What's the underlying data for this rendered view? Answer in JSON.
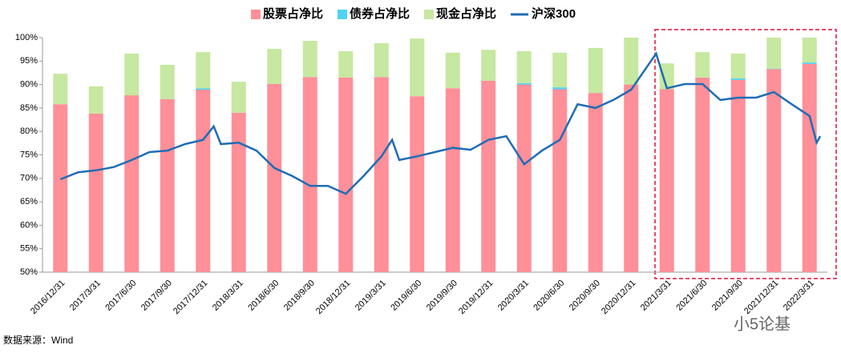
{
  "chart_data": {
    "type": "bar",
    "categories": [
      "2016/12/31",
      "2017/3/31",
      "2017/6/30",
      "2017/9/30",
      "2017/12/31",
      "2018/3/31",
      "2018/6/30",
      "2018/9/30",
      "2018/12/31",
      "2019/3/31",
      "2019/6/30",
      "2019/9/30",
      "2019/12/31",
      "2020/3/31",
      "2020/6/30",
      "2020/9/30",
      "2020/12/31",
      "2021/3/31",
      "2021/6/30",
      "2021/9/30",
      "2021/12/31",
      "2022/3/31"
    ],
    "series": [
      {
        "name": "股票占净比",
        "color": "#ff8f98",
        "values": [
          85.8,
          83.8,
          87.7,
          86.9,
          88.9,
          84.0,
          90.1,
          91.6,
          91.5,
          91.6,
          87.5,
          89.2,
          90.8,
          90.0,
          89.0,
          88.2,
          90.0,
          89.0,
          91.5,
          91.0,
          93.3,
          94.4
        ]
      },
      {
        "name": "债券占净比",
        "color": "#4dd3f0",
        "values": [
          0,
          0,
          0,
          0,
          0.3,
          0,
          0,
          0,
          0,
          0,
          0,
          0,
          0,
          0.3,
          0.4,
          0,
          0,
          0,
          0,
          0.3,
          0.1,
          0.3
        ]
      },
      {
        "name": "现金占净比",
        "color": "#c6e8a0",
        "values": [
          6.5,
          5.8,
          8.9,
          7.3,
          7.7,
          6.6,
          7.5,
          7.7,
          5.6,
          7.2,
          12.3,
          7.6,
          6.6,
          6.8,
          7.4,
          9.6,
          10.0,
          5.5,
          5.4,
          5.3,
          6.6,
          5.3
        ]
      },
      {
        "name": "沪深300",
        "color": "#1f6db5",
        "type": "line",
        "x": [
          0,
          0.5,
          1,
          1.5,
          2,
          2.5,
          3,
          3.5,
          4,
          4.3,
          4.5,
          5,
          5.5,
          6,
          6.5,
          7,
          7.5,
          8,
          8.5,
          9,
          9.3,
          9.5,
          10,
          10.5,
          11,
          11.5,
          12,
          12.5,
          13,
          13.5,
          14,
          14.5,
          15,
          15.5,
          16,
          16.5,
          16.7,
          17,
          17.5,
          18,
          18.5,
          19,
          19.5,
          20,
          20.5,
          21,
          21.2,
          21.3
        ],
        "values": [
          69.8,
          71.3,
          71.7,
          72.4,
          73.9,
          75.6,
          75.9,
          77.3,
          78.2,
          81.1,
          77.3,
          77.6,
          75.9,
          72.2,
          70.5,
          68.4,
          68.4,
          66.7,
          70.5,
          74.7,
          78.2,
          73.9,
          74.7,
          75.6,
          76.5,
          76.1,
          78.2,
          79.0,
          73.0,
          75.9,
          78.2,
          85.8,
          85.0,
          86.7,
          88.9,
          94.4,
          96.6,
          89.2,
          90.1,
          90.1,
          86.7,
          87.2,
          87.2,
          88.4,
          85.8,
          83.3,
          77.6,
          79.0
        ]
      }
    ],
    "ylim": [
      50,
      100
    ],
    "yticks": [
      {
        "value": 50,
        "label": "50%"
      },
      {
        "value": 55,
        "label": "55%"
      },
      {
        "value": 60,
        "label": "60%"
      },
      {
        "value": 65,
        "label": "65%"
      },
      {
        "value": 70,
        "label": "70%"
      },
      {
        "value": 75,
        "label": "75%"
      },
      {
        "value": 80,
        "label": "80%"
      },
      {
        "value": 85,
        "label": "85%"
      },
      {
        "value": 90,
        "label": "90%"
      },
      {
        "value": 95,
        "label": "95%"
      },
      {
        "value": 100,
        "label": "100%"
      }
    ],
    "grid": false,
    "legend": "top",
    "source": "数据来源：Wind",
    "watermark": "小5论基"
  }
}
